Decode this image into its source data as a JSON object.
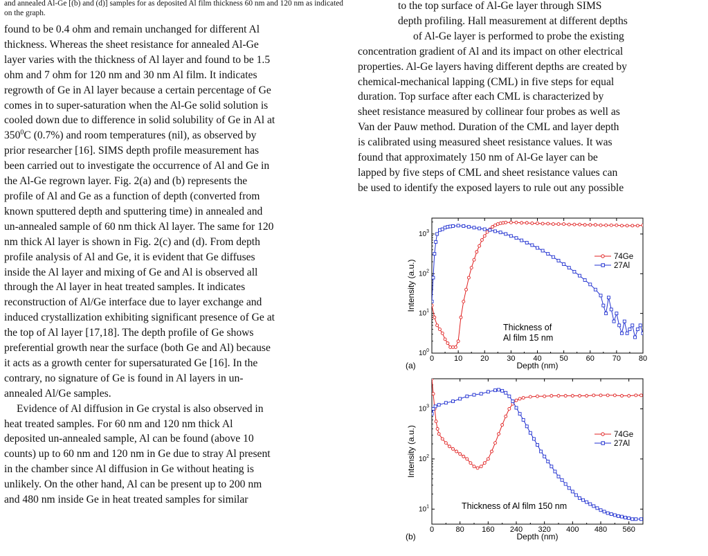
{
  "left_column": {
    "caption": "and annealed Al-Ge [(b) and (d)] samples for as deposited Al film thickness 60 nm and 120 nm as indicated on the graph.",
    "para1_lines": [
      "found to be 0.4 ohm and remain unchanged for different Al",
      "thickness. Whereas the sheet resistance for annealed Al-Ge",
      "layer varies with the thickness of Al layer and found to be 1.5",
      "ohm and 7 ohm for 120 nm and 30 nm Al film. It indicates",
      "regrowth of Ge in Al layer because a certain percentage of Ge",
      "comes in to super-saturation when the Al-Ge solid solution is",
      "cooled down due to difference in solid solubility of Ge in Al at",
      "350",
      "C (0.7%) and room temperatures (nil), as observed by",
      "prior researcher [16]. SIMS depth profile measurement has",
      "been carried out to investigate the occurrence of Al and Ge in",
      "the Al-Ge regrown layer. Fig. 2(a) and (b) represents the",
      "profile of Al and Ge as a function of depth (converted from",
      "known sputtered depth and sputtering time) in annealed and",
      "un-annealed sample of 60 nm thick Al layer. The same for 120",
      "nm thick Al layer is shown in Fig. 2(c) and (d). From depth",
      "profile analysis of Al and Ge, it is evident that Ge diffuses",
      "inside the Al layer and mixing of Ge and Al is observed all",
      "through the Al layer in heat treated samples. It indicates",
      "reconstruction of Al/Ge interface due to layer exchange and",
      "induced crystallization exhibiting significant presence of Ge at",
      "the top of Al layer [17,18]. The depth profile of Ge shows",
      "preferential growth near the surface (both Ge and Al) because",
      "it acts as a growth center for supersaturated Ge [16]. In the",
      "contrary, no signature of Ge is found in Al layers in un-",
      "annealed Al/Ge samples."
    ],
    "degree_sup": "0",
    "para2_lines": [
      "Evidence of Al diffusion in Ge crystal is also observed in",
      "heat treated samples. For 60 nm and 120 nm thick Al",
      "deposited un-annealed sample, Al can be found (above 10",
      "counts) up to 60 nm and 120 nm in Ge due to stray Al present",
      "in the chamber since Al diffusion in Ge without heating is",
      "unlikely. On the other hand, Al can be present up to 200 nm",
      "and 480 nm inside Ge in heat treated samples for similar"
    ]
  },
  "right_column": {
    "lines": [
      "to the top surface of Al-Ge layer through SIMS",
      "depth profiling. Hall measurement at different depths",
      "of Al-Ge layer is performed to probe the existing",
      "concentration gradient of Al and its impact on other electrical",
      "properties. Al-Ge layers having different depths are created by",
      "chemical-mechanical lapping (CML) in five steps for equal",
      "duration. Top surface after each CML is characterized by",
      "sheet resistance measured by collinear four probes as well as",
      "Van der Pauw method. Duration of the CML and layer depth",
      "is calibrated using measured sheet resistance values. It was",
      "found that approximately 150 nm of Al-Ge layer can be",
      "lapped by five steps of CML and sheet resistance values can",
      "be used to identify the exposed layers to rule out any possible"
    ]
  },
  "chart_data": [
    {
      "type": "scatter",
      "panel_label": "(a)",
      "xlabel": "Depth (nm)",
      "ylabel": "Intensity (a.u.)",
      "xlim": [
        0,
        80
      ],
      "ylim_log": [
        0,
        3.4
      ],
      "xticks": [
        "0",
        "10",
        "20",
        "30",
        "40",
        "50",
        "60",
        "70",
        "80"
      ],
      "yticks": [
        "10",
        "10",
        "10",
        "10"
      ],
      "ytick_exps": [
        "0",
        "1",
        "2",
        "3"
      ],
      "annotation_lines": [
        "Thickness of",
        "Al film 15 nm"
      ],
      "series": [
        {
          "name": "74Ge",
          "color": "#e02020",
          "marker": "circle",
          "points": [
            [
              0,
              1.2
            ],
            [
              1,
              0.9
            ],
            [
              2,
              0.7
            ],
            [
              3,
              0.6
            ],
            [
              4,
              0.5
            ],
            [
              5,
              0.35
            ],
            [
              6,
              0.25
            ],
            [
              7,
              0.15
            ],
            [
              8,
              0.15
            ],
            [
              9,
              0.15
            ],
            [
              10,
              0.3
            ],
            [
              11,
              0.9
            ],
            [
              12,
              1.3
            ],
            [
              13,
              1.6
            ],
            [
              14,
              1.9
            ],
            [
              15,
              2.15
            ],
            [
              16,
              2.35
            ],
            [
              17,
              2.55
            ],
            [
              18,
              2.7
            ],
            [
              19,
              2.85
            ],
            [
              20,
              2.95
            ],
            [
              21,
              3.05
            ],
            [
              22,
              3.12
            ],
            [
              23,
              3.18
            ],
            [
              24,
              3.22
            ],
            [
              25,
              3.25
            ],
            [
              26,
              3.27
            ],
            [
              27,
              3.28
            ],
            [
              28,
              3.29
            ],
            [
              30,
              3.29
            ],
            [
              32,
              3.29
            ],
            [
              34,
              3.28
            ],
            [
              36,
              3.28
            ],
            [
              38,
              3.27
            ],
            [
              40,
              3.27
            ],
            [
              42,
              3.26
            ],
            [
              44,
              3.26
            ],
            [
              46,
              3.25
            ],
            [
              48,
              3.25
            ],
            [
              50,
              3.25
            ],
            [
              52,
              3.24
            ],
            [
              54,
              3.24
            ],
            [
              56,
              3.24
            ],
            [
              58,
              3.23
            ],
            [
              60,
              3.23
            ],
            [
              62,
              3.23
            ],
            [
              64,
              3.22
            ],
            [
              66,
              3.22
            ],
            [
              68,
              3.22
            ],
            [
              70,
              3.22
            ],
            [
              72,
              3.21
            ],
            [
              74,
              3.21
            ],
            [
              76,
              3.21
            ],
            [
              78,
              3.21
            ],
            [
              80,
              3.22
            ]
          ]
        },
        {
          "name": "27Al",
          "color": "#2030d0",
          "marker": "square",
          "points": [
            [
              0,
              1.3
            ],
            [
              0.5,
              1.9
            ],
            [
              1,
              2.5
            ],
            [
              1.5,
              2.8
            ],
            [
              2,
              3.0
            ],
            [
              3,
              3.1
            ],
            [
              4,
              3.12
            ],
            [
              5,
              3.16
            ],
            [
              6,
              3.18
            ],
            [
              7,
              3.19
            ],
            [
              8,
              3.2
            ],
            [
              10,
              3.21
            ],
            [
              12,
              3.2
            ],
            [
              14,
              3.18
            ],
            [
              16,
              3.16
            ],
            [
              18,
              3.14
            ],
            [
              20,
              3.12
            ],
            [
              22,
              3.1
            ],
            [
              24,
              3.07
            ],
            [
              26,
              3.04
            ],
            [
              28,
              3.0
            ],
            [
              30,
              2.95
            ],
            [
              32,
              2.9
            ],
            [
              34,
              2.84
            ],
            [
              36,
              2.78
            ],
            [
              38,
              2.72
            ],
            [
              40,
              2.65
            ],
            [
              42,
              2.58
            ],
            [
              44,
              2.5
            ],
            [
              46,
              2.42
            ],
            [
              48,
              2.33
            ],
            [
              50,
              2.24
            ],
            [
              52,
              2.15
            ],
            [
              54,
              2.05
            ],
            [
              56,
              1.95
            ],
            [
              58,
              1.84
            ],
            [
              60,
              1.73
            ],
            [
              62,
              1.6
            ],
            [
              64,
              1.45
            ],
            [
              65,
              1.2
            ],
            [
              66,
              1.0
            ],
            [
              67,
              1.4
            ],
            [
              68,
              1.1
            ],
            [
              69,
              0.8
            ],
            [
              70,
              1.0
            ],
            [
              71,
              0.7
            ],
            [
              72,
              0.5
            ],
            [
              73,
              0.8
            ],
            [
              74,
              0.5
            ],
            [
              75,
              0.6
            ],
            [
              76,
              0.7
            ],
            [
              77,
              0.4
            ],
            [
              78,
              0.6
            ],
            [
              79,
              0.7
            ],
            [
              80,
              0.5
            ]
          ]
        }
      ]
    },
    {
      "type": "scatter",
      "panel_label": "(b)",
      "xlabel": "Depth (nm)",
      "ylabel": "Intensity (a.u.)",
      "xlim": [
        0,
        600
      ],
      "ylim_log": [
        0.7,
        3.6
      ],
      "xticks": [
        "0",
        "80",
        "160",
        "240",
        "320",
        "400",
        "480",
        "560"
      ],
      "yticks": [
        "10",
        "10",
        "10"
      ],
      "ytick_exps": [
        "1",
        "2",
        "3"
      ],
      "annotation_lines": [
        "Thickness of Al film 150 nm"
      ],
      "series": [
        {
          "name": "74Ge",
          "color": "#e02020",
          "marker": "circle",
          "points": [
            [
              0,
              3.6
            ],
            [
              4,
              3.3
            ],
            [
              8,
              3.0
            ],
            [
              12,
              2.75
            ],
            [
              16,
              2.6
            ],
            [
              20,
              2.5
            ],
            [
              30,
              2.4
            ],
            [
              40,
              2.32
            ],
            [
              50,
              2.25
            ],
            [
              60,
              2.2
            ],
            [
              70,
              2.15
            ],
            [
              80,
              2.1
            ],
            [
              90,
              2.05
            ],
            [
              100,
              2.0
            ],
            [
              110,
              1.92
            ],
            [
              120,
              1.85
            ],
            [
              130,
              1.82
            ],
            [
              140,
              1.85
            ],
            [
              150,
              1.92
            ],
            [
              160,
              2.0
            ],
            [
              170,
              2.15
            ],
            [
              180,
              2.32
            ],
            [
              190,
              2.5
            ],
            [
              200,
              2.68
            ],
            [
              210,
              2.85
            ],
            [
              220,
              3.0
            ],
            [
              230,
              3.1
            ],
            [
              240,
              3.17
            ],
            [
              250,
              3.2
            ],
            [
              260,
              3.22
            ],
            [
              280,
              3.24
            ],
            [
              300,
              3.25
            ],
            [
              320,
              3.25
            ],
            [
              340,
              3.26
            ],
            [
              360,
              3.26
            ],
            [
              380,
              3.26
            ],
            [
              400,
              3.26
            ],
            [
              420,
              3.26
            ],
            [
              440,
              3.26
            ],
            [
              460,
              3.27
            ],
            [
              480,
              3.27
            ],
            [
              500,
              3.27
            ],
            [
              520,
              3.27
            ],
            [
              540,
              3.26
            ],
            [
              560,
              3.26
            ],
            [
              580,
              3.27
            ],
            [
              595,
              3.27
            ]
          ]
        },
        {
          "name": "27Al",
          "color": "#2030d0",
          "marker": "square",
          "points": [
            [
              0,
              2.9
            ],
            [
              4,
              3.0
            ],
            [
              10,
              3.05
            ],
            [
              20,
              3.08
            ],
            [
              40,
              3.12
            ],
            [
              60,
              3.15
            ],
            [
              80,
              3.2
            ],
            [
              100,
              3.25
            ],
            [
              120,
              3.28
            ],
            [
              140,
              3.3
            ],
            [
              160,
              3.34
            ],
            [
              180,
              3.37
            ],
            [
              190,
              3.38
            ],
            [
              200,
              3.36
            ],
            [
              210,
              3.32
            ],
            [
              220,
              3.25
            ],
            [
              230,
              3.15
            ],
            [
              240,
              3.02
            ],
            [
              250,
              2.9
            ],
            [
              260,
              2.78
            ],
            [
              270,
              2.65
            ],
            [
              280,
              2.52
            ],
            [
              290,
              2.4
            ],
            [
              300,
              2.28
            ],
            [
              310,
              2.15
            ],
            [
              320,
              2.05
            ],
            [
              330,
              1.95
            ],
            [
              340,
              1.85
            ],
            [
              350,
              1.75
            ],
            [
              360,
              1.65
            ],
            [
              370,
              1.58
            ],
            [
              380,
              1.5
            ],
            [
              390,
              1.42
            ],
            [
              400,
              1.35
            ],
            [
              410,
              1.28
            ],
            [
              420,
              1.22
            ],
            [
              430,
              1.18
            ],
            [
              440,
              1.14
            ],
            [
              450,
              1.1
            ],
            [
              460,
              1.06
            ],
            [
              470,
              1.02
            ],
            [
              480,
              0.98
            ],
            [
              490,
              0.95
            ],
            [
              500,
              0.92
            ],
            [
              510,
              0.9
            ],
            [
              520,
              0.88
            ],
            [
              530,
              0.86
            ],
            [
              540,
              0.85
            ],
            [
              550,
              0.83
            ],
            [
              560,
              0.82
            ],
            [
              570,
              0.8
            ],
            [
              580,
              0.8
            ],
            [
              595,
              0.8
            ]
          ]
        }
      ]
    }
  ]
}
